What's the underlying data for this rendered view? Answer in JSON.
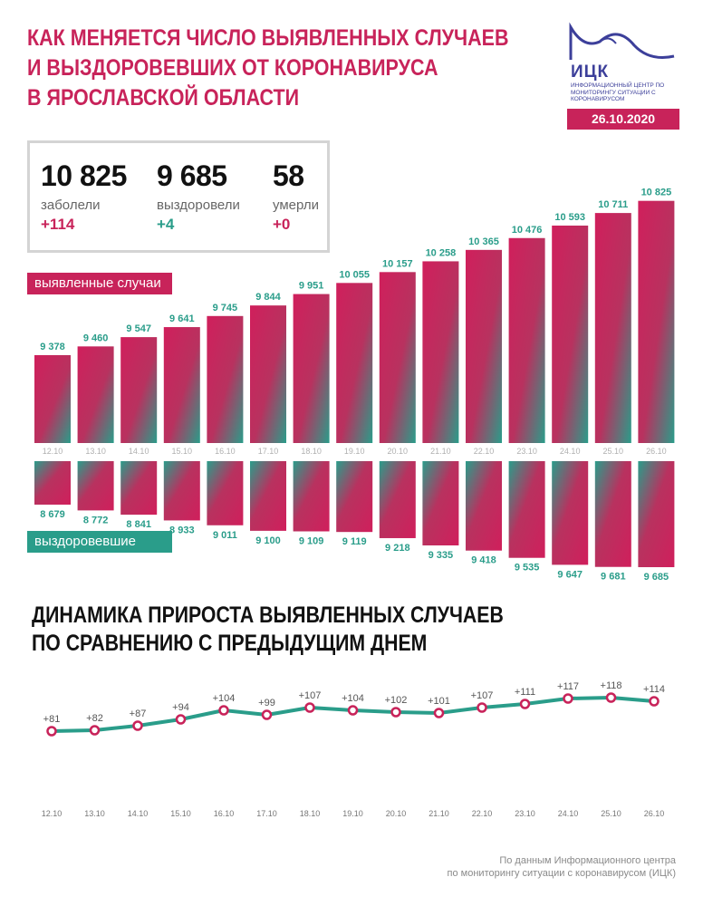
{
  "header": {
    "title_lines": [
      "КАК МЕНЯЕТСЯ ЧИСЛО ВЫЯВЛЕННЫХ СЛУЧАЕВ",
      "И ВЫЗДОРОВЕВШИХ ОТ КОРОНАВИРУСА",
      "В ЯРОСЛАВСКОЙ ОБЛАСТИ"
    ],
    "date": "26.10.2020"
  },
  "logo": {
    "name": "ИЦК",
    "subtitle": "ИНФОРМАЦИОННЫЙ ЦЕНТР ПО МОНИТОРИНГУ СИТУАЦИИ С КОРОНАВИРУСОМ"
  },
  "stats": [
    {
      "value": "10 825",
      "label": "заболели",
      "delta": "+114",
      "delta_color": "#c8235a"
    },
    {
      "value": "9 685",
      "label": "выздоровели",
      "delta": "+4",
      "delta_color": "#2a9d8a"
    },
    {
      "value": "58",
      "label": "умерли",
      "delta": "+0",
      "delta_color": "#c8235a"
    }
  ],
  "legend": {
    "cases": "выявленные случаи",
    "recovered": "выздоровевшие"
  },
  "section2_title_lines": [
    "ДИНАМИКА ПРИРОСТА ВЫЯВЛЕННЫХ СЛУЧАЕВ",
    "ПО СРАВНЕНИЮ С ПРЕДЫДУЩИМ ДНЕМ"
  ],
  "source_lines": [
    "По данным Информационного центра",
    "по мониторингу ситуации с коронавирусом (ИЦК)"
  ],
  "colors": {
    "crimson": "#c8235a",
    "teal": "#2a9d8a",
    "navy": "#3c3f9a"
  },
  "chart_data": [
    {
      "type": "bar",
      "categories": [
        "12.10",
        "13.10",
        "14.10",
        "15.10",
        "16.10",
        "17.10",
        "18.10",
        "19.10",
        "20.10",
        "21.10",
        "22.10",
        "23.10",
        "24.10",
        "25.10",
        "26.10"
      ],
      "series": [
        {
          "name": "выявленные случаи",
          "values": [
            9378,
            9460,
            9547,
            9641,
            9745,
            9844,
            9951,
            10055,
            10157,
            10258,
            10365,
            10476,
            10593,
            10711,
            10825
          ],
          "labels": [
            "9 378",
            "9 460",
            "9 547",
            "9 641",
            "9 745",
            "9 844",
            "9 951",
            "10 055",
            "10 157",
            "10 258",
            "10 365",
            "10 476",
            "10 593",
            "10 711",
            "10 825"
          ]
        },
        {
          "name": "выздоровевшие",
          "values": [
            8679,
            8772,
            8841,
            8933,
            9011,
            9100,
            9109,
            9119,
            9218,
            9335,
            9418,
            9535,
            9647,
            9681,
            9685
          ],
          "labels": [
            "8 679",
            "8 772",
            "8 841",
            "8 933",
            "9 011",
            "9 100",
            "9 109",
            "9 119",
            "9 218",
            "9 335",
            "9 418",
            "9 535",
            "9 647",
            "9 681",
            "9 685"
          ]
        }
      ]
    },
    {
      "type": "line",
      "categories": [
        "12.10",
        "13.10",
        "14.10",
        "15.10",
        "16.10",
        "17.10",
        "18.10",
        "19.10",
        "20.10",
        "21.10",
        "22.10",
        "23.10",
        "24.10",
        "25.10",
        "26.10"
      ],
      "series": [
        {
          "values": [
            81,
            82,
            87,
            94,
            104,
            99,
            107,
            104,
            102,
            101,
            107,
            111,
            117,
            118,
            114
          ],
          "labels": [
            "+81",
            "+82",
            "+87",
            "+94",
            "+104",
            "+99",
            "+107",
            "+104",
            "+102",
            "+101",
            "+107",
            "+111",
            "+117",
            "+118",
            "+114"
          ]
        }
      ]
    }
  ]
}
